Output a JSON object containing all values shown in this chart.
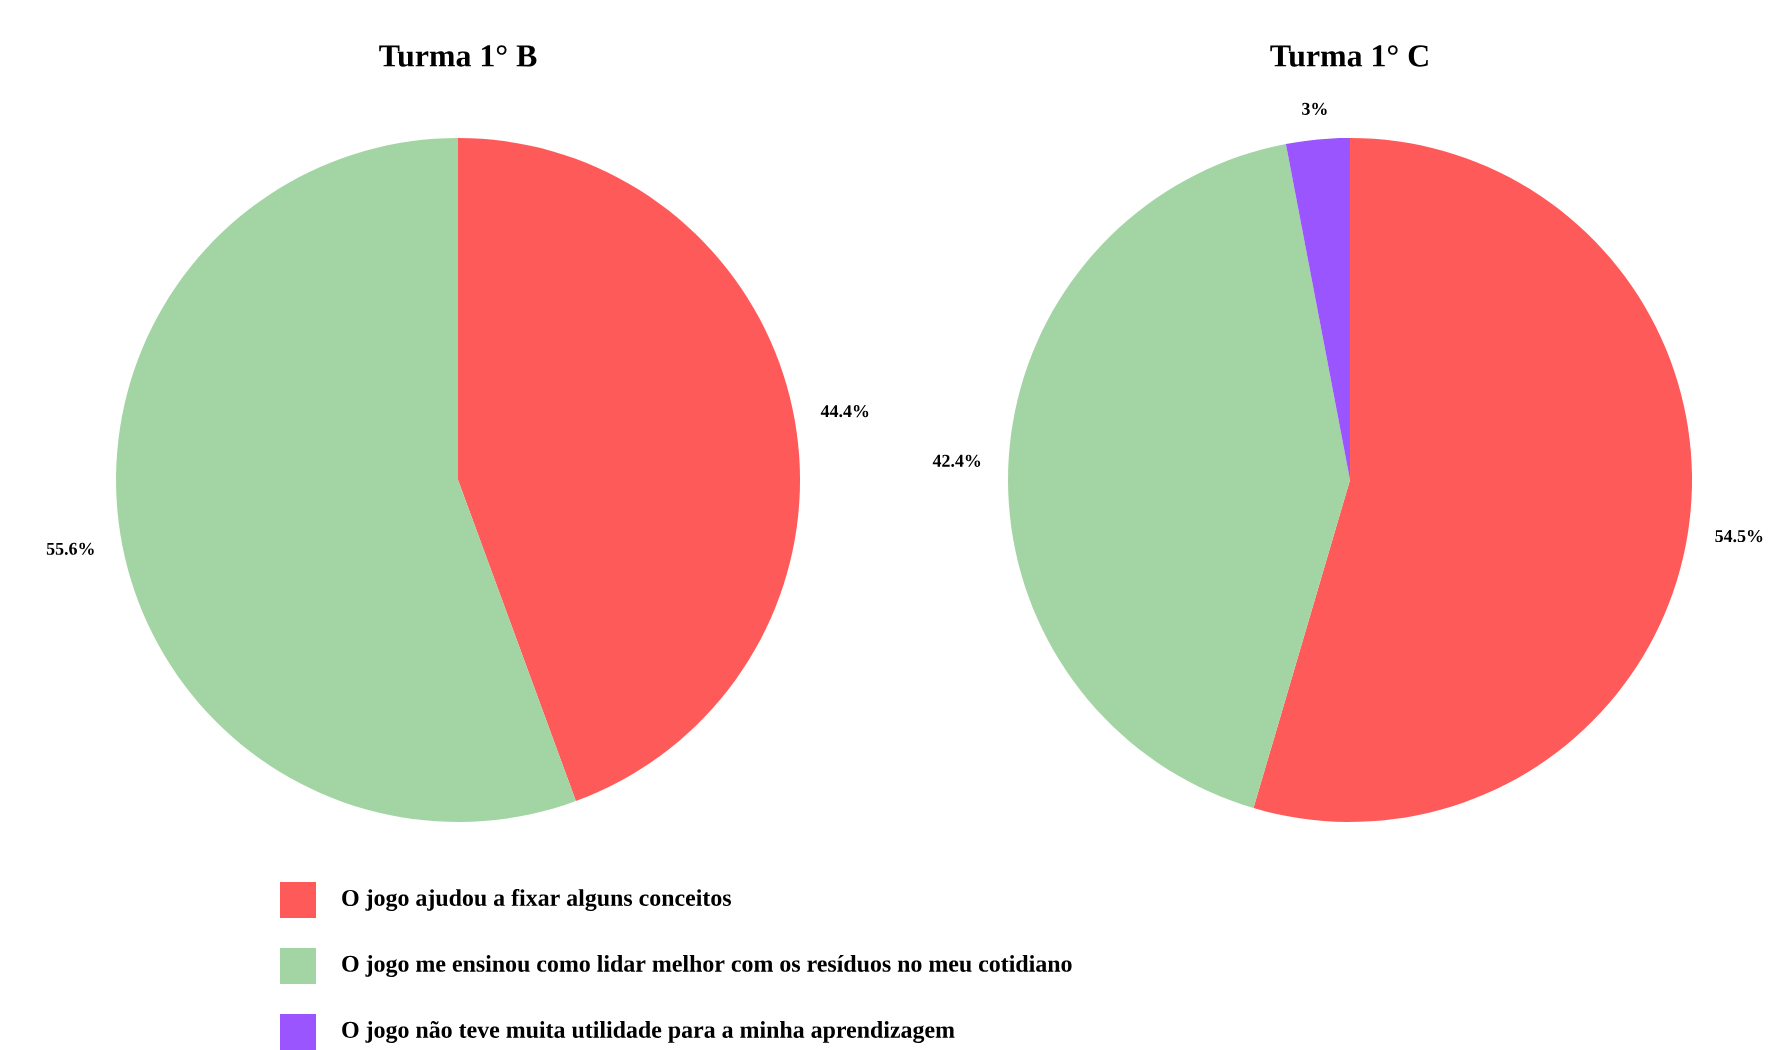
{
  "chart_data": [
    {
      "type": "pie",
      "title": "Turma 1° B",
      "categories": [
        null,
        null
      ],
      "values": [
        44.4,
        55.6
      ],
      "colors": [
        "#ff5a5a",
        "#a3d4a3"
      ],
      "value_labels": [
        "44.4%",
        "55.6%"
      ],
      "legend": false
    },
    {
      "type": "pie",
      "title": "Turma 1° C",
      "categories": [
        "O jogo ajudou a fixar alguns conceitos",
        "O jogo me ensinou como lidar melhor com os resíduos no meu cotidiano",
        "O jogo não teve muita utilidade para a minha aprendizagem"
      ],
      "values": [
        54.5,
        42.4,
        3
      ],
      "colors": [
        "#ff5a5a",
        "#a3d4a3",
        "#9b55ff"
      ],
      "value_labels": [
        "54.5%",
        "42.4%",
        "3%"
      ],
      "legend": "bottom"
    }
  ]
}
